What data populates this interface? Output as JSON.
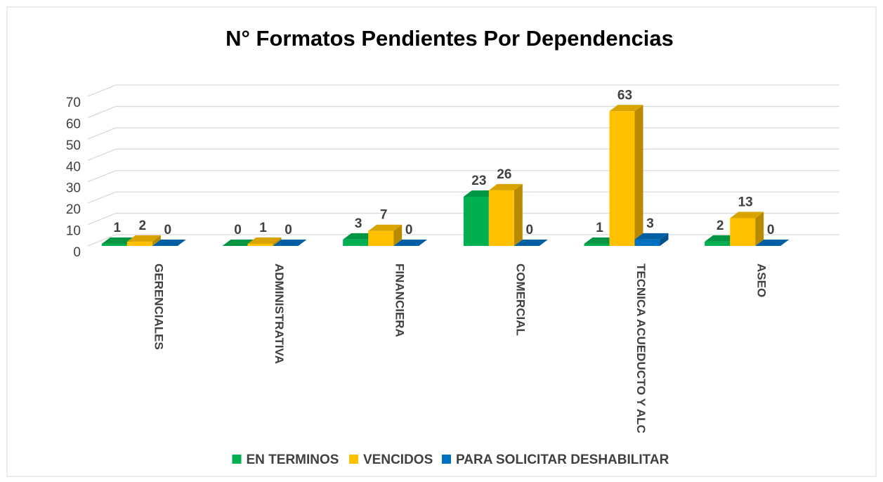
{
  "chart_data": {
    "type": "bar3d",
    "title": "N° Formatos Pendientes Por Dependencias",
    "categories": [
      "GERENCIALES",
      "ADMINISTRATIVA",
      "FINANCIERA",
      "COMERCIAL",
      "TECNICA ACUEDUCTO Y ALC",
      "ASEO"
    ],
    "series": [
      {
        "name": "EN TERMINOS",
        "color": "#00b050",
        "values": [
          1,
          0,
          3,
          23,
          1,
          2
        ]
      },
      {
        "name": "VENCIDOS",
        "color": "#ffc000",
        "values": [
          2,
          1,
          7,
          26,
          63,
          13
        ]
      },
      {
        "name": "PARA SOLICITAR DESHABILITAR",
        "color": "#0070c0",
        "values": [
          0,
          0,
          0,
          0,
          3,
          0
        ]
      }
    ],
    "ylim": [
      0,
      70
    ],
    "yticks": [
      0,
      10,
      20,
      30,
      40,
      50,
      60,
      70
    ],
    "grid": true,
    "legend": "bottom"
  }
}
